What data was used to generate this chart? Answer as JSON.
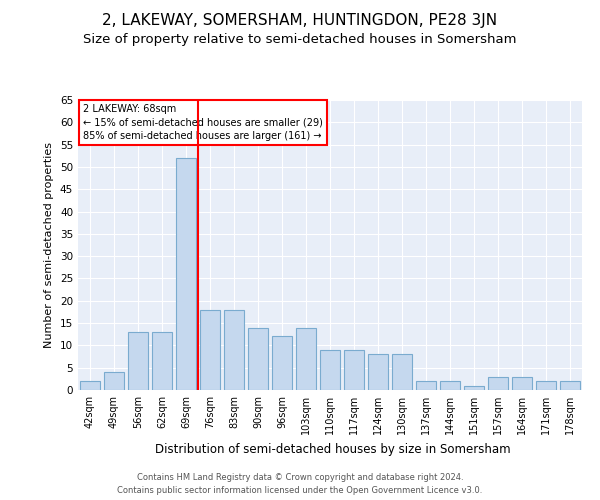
{
  "title": "2, LAKEWAY, SOMERSHAM, HUNTINGDON, PE28 3JN",
  "subtitle": "Size of property relative to semi-detached houses in Somersham",
  "xlabel": "Distribution of semi-detached houses by size in Somersham",
  "ylabel": "Number of semi-detached properties",
  "categories": [
    "42sqm",
    "49sqm",
    "56sqm",
    "62sqm",
    "69sqm",
    "76sqm",
    "83sqm",
    "90sqm",
    "96sqm",
    "103sqm",
    "110sqm",
    "117sqm",
    "124sqm",
    "130sqm",
    "137sqm",
    "144sqm",
    "151sqm",
    "157sqm",
    "164sqm",
    "171sqm",
    "178sqm"
  ],
  "values": [
    2,
    4,
    13,
    13,
    52,
    18,
    18,
    14,
    12,
    14,
    9,
    9,
    8,
    8,
    2,
    2,
    1,
    3,
    3,
    2,
    2
  ],
  "bar_color": "#c5d8ee",
  "bar_edge_color": "#7aabcf",
  "highlight_index": 4,
  "red_line_after_index": 4,
  "annotation_text_line1": "2 LAKEWAY: 68sqm",
  "annotation_text_line2": "← 15% of semi-detached houses are smaller (29)",
  "annotation_text_line3": "85% of semi-detached houses are larger (161) →",
  "ylim": [
    0,
    65
  ],
  "yticks": [
    0,
    5,
    10,
    15,
    20,
    25,
    30,
    35,
    40,
    45,
    50,
    55,
    60,
    65
  ],
  "background_color": "#e8eef8",
  "grid_color": "#ffffff",
  "footer_line1": "Contains HM Land Registry data © Crown copyright and database right 2024.",
  "footer_line2": "Contains public sector information licensed under the Open Government Licence v3.0.",
  "title_fontsize": 11,
  "subtitle_fontsize": 9.5
}
